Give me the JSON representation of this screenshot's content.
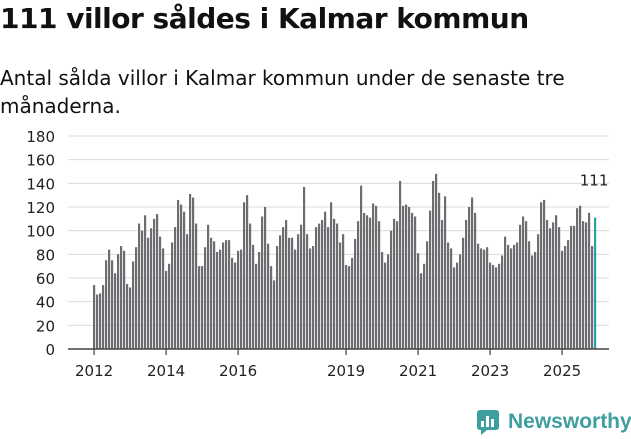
{
  "title": "111 villor såldes i Kalmar kommun",
  "subtitle": "Antal sålda villor i Kalmar kommun under de senaste tre månaderna.",
  "brand": {
    "name": "Newsworthy",
    "color": "#3f9f9f"
  },
  "chart_data": {
    "type": "bar",
    "title": "111 villor såldes i Kalmar kommun",
    "xlabel": "",
    "ylabel": "",
    "ylim": [
      0,
      180
    ],
    "yticks": [
      0,
      20,
      40,
      60,
      80,
      100,
      120,
      140,
      160,
      180
    ],
    "grid": true,
    "start": "2012-01",
    "x_tick_labels": [
      "2012",
      "2014",
      "2016",
      "2019",
      "2021",
      "2023",
      "2025"
    ],
    "x_tick_index": [
      0,
      24,
      48,
      84,
      108,
      132,
      156
    ],
    "bar_color": "#6d6c70",
    "highlight_color": "#28a0a6",
    "highlight_label": "111",
    "values": [
      54,
      46,
      47,
      54,
      75,
      84,
      75,
      64,
      80,
      87,
      83,
      55,
      52,
      74,
      86,
      106,
      100,
      113,
      94,
      102,
      110,
      114,
      95,
      85,
      66,
      72,
      90,
      103,
      126,
      122,
      116,
      97,
      131,
      128,
      106,
      70,
      70,
      86,
      105,
      94,
      91,
      82,
      84,
      90,
      92,
      92,
      77,
      73,
      83,
      84,
      124,
      130,
      106,
      88,
      72,
      82,
      112,
      120,
      89,
      70,
      58,
      87,
      96,
      103,
      109,
      94,
      94,
      84,
      97,
      105,
      137,
      97,
      85,
      87,
      103,
      106,
      109,
      116,
      103,
      124,
      110,
      106,
      90,
      97,
      71,
      70,
      77,
      93,
      108,
      138,
      115,
      113,
      111,
      123,
      121,
      108,
      82,
      73,
      80,
      100,
      110,
      108,
      142,
      121,
      122,
      120,
      115,
      112,
      81,
      64,
      72,
      91,
      117,
      142,
      148,
      132,
      109,
      129,
      90,
      85,
      69,
      73,
      80,
      94,
      109,
      120,
      128,
      115,
      89,
      85,
      84,
      86,
      73,
      71,
      69,
      72,
      79,
      95,
      88,
      85,
      88,
      90,
      105,
      112,
      108,
      91,
      79,
      82,
      97,
      124,
      126,
      109,
      102,
      107,
      113,
      103,
      83,
      87,
      92,
      104,
      104,
      119,
      121,
      108,
      107,
      115,
      87,
      111
    ]
  }
}
